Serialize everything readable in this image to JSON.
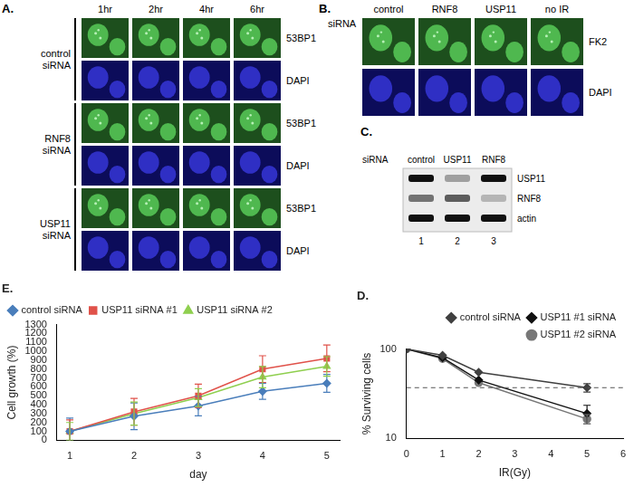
{
  "figure": {
    "A": {
      "panel_label": "A.",
      "time_points": [
        "1hr",
        "2hr",
        "4hr",
        "6hr"
      ],
      "groups": [
        {
          "name": "control siRNA",
          "channels": [
            "53BP1",
            "DAPI"
          ]
        },
        {
          "name": "RNF8 siRNA",
          "channels": [
            "53BP1",
            "DAPI"
          ]
        },
        {
          "name": "USP11 siRNA",
          "channels": [
            "53BP1",
            "DAPI"
          ]
        }
      ]
    },
    "B": {
      "panel_label": "B.",
      "header": "siRNA",
      "conditions": [
        "control",
        "RNF8",
        "USP11",
        "no IR"
      ],
      "channels": [
        "FK2",
        "DAPI"
      ]
    },
    "C": {
      "panel_label": "C.",
      "header": "siRNA",
      "lanes": [
        "control",
        "USP11",
        "RNF8"
      ],
      "lane_numbers": [
        1,
        2,
        3
      ],
      "bands": [
        {
          "name": "USP11",
          "levels": [
            1,
            0.35,
            1
          ]
        },
        {
          "name": "RNF8",
          "levels": [
            0.55,
            0.65,
            0.25
          ]
        },
        {
          "name": "actin",
          "levels": [
            1,
            1,
            1
          ]
        }
      ]
    }
  },
  "chart_data": [
    {
      "panel_label": "E.",
      "type": "line",
      "x_label": "day",
      "y_label": "Cell growth (%)",
      "x": [
        1,
        2,
        3,
        4,
        5
      ],
      "xlim": [
        0.8,
        5.2
      ],
      "xticks": [
        1,
        2,
        3,
        4,
        5
      ],
      "ylim": [
        0,
        1300
      ],
      "yticks": [
        0,
        100,
        200,
        300,
        400,
        500,
        600,
        700,
        800,
        900,
        1000,
        1100,
        1200,
        1300
      ],
      "grid": false,
      "legend": "upper left",
      "series": [
        {
          "name": "control siRNA",
          "color": "#4a7ebb",
          "marker": "diamond",
          "values": [
            100,
            270,
            385,
            550,
            640
          ],
          "errors": [
            150,
            150,
            110,
            90,
            100
          ]
        },
        {
          "name": "USP11 siRNA #1",
          "color": "#e0524a",
          "marker": "square",
          "values": [
            100,
            320,
            500,
            800,
            920
          ],
          "errors": [
            130,
            150,
            130,
            150,
            150
          ]
        },
        {
          "name": "USP11 siRNA #2",
          "color": "#8fcf4f",
          "marker": "triangle",
          "values": [
            100,
            300,
            480,
            710,
            830
          ],
          "errors": [
            100,
            130,
            100,
            120,
            110
          ]
        }
      ]
    },
    {
      "panel_label": "D.",
      "type": "line",
      "x_label": "IR(Gy)",
      "y_label": "% Surviving cells",
      "log": "y",
      "x": [
        0,
        1,
        2,
        5
      ],
      "xlim": [
        0,
        6
      ],
      "xticks": [
        0,
        1,
        2,
        3,
        4,
        5,
        6
      ],
      "ylim": [
        10,
        100
      ],
      "yticks": [
        10,
        100
      ],
      "grid": false,
      "legend": "upper right",
      "reference_lines": [
        {
          "value": 37,
          "line_style": "dashed"
        }
      ],
      "series": [
        {
          "name": "control siRNA",
          "color": "#404040",
          "marker": "diamond",
          "values": [
            100,
            85,
            55,
            37
          ],
          "errors": [
            null,
            null,
            null,
            4
          ]
        },
        {
          "name": "USP11 #1 siRNA",
          "color": "#111111",
          "marker": "diamond",
          "values": [
            100,
            80,
            45,
            19
          ],
          "errors": [
            null,
            null,
            null,
            4.5
          ]
        },
        {
          "name": "USP11 #2 siRNA",
          "color": "#777777",
          "marker": "circle",
          "values": [
            100,
            78,
            42,
            16.5
          ],
          "errors": [
            null,
            null,
            null,
            2
          ]
        }
      ]
    }
  ]
}
